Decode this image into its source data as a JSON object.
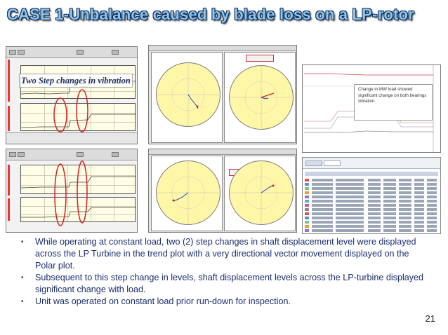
{
  "slide": {
    "title": "CASE 1-Unbalance caused by blade loss on a LP-rotor",
    "callout": "Two Step changes in vibration",
    "note": "Change in MW load showed significant change on both bearings vibration.",
    "bullets": [
      "While operating at constant load, two (2) step changes in shaft displacement level were displayed across the  LP Turbine in the trend plot with a very directional vector movement  displayed on the Polar plot.",
      "Subsequent to this step change in levels, shaft displacement levels across the LP-turbine displayed significant change with load.",
      "Unit was operated on constant load prior run-down for inspection."
    ],
    "bullet_symbol": "•",
    "page_number": "21",
    "colors": {
      "title_fill": "#8ec6f0",
      "title_outline": "#0a2a55",
      "bullet_text": "#1a2e6e",
      "polar_fill": "#fff7a8",
      "trend_fill": "#fffde6",
      "circle_marker": "#d62020",
      "vector_blue": "#1f3fbf",
      "vector_red": "#d62020"
    }
  }
}
